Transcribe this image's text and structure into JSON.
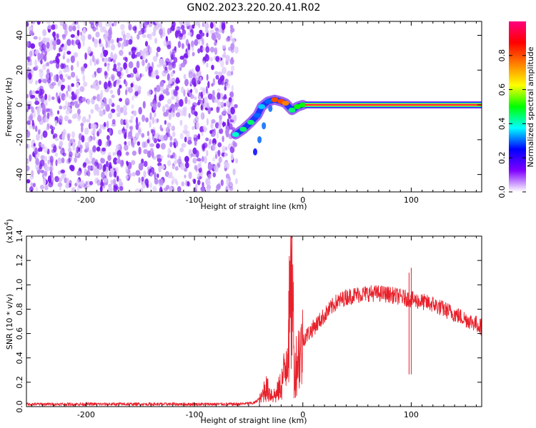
{
  "title": "GN02.2023.220.20.41.R02",
  "chart_data": [
    {
      "type": "heatmap",
      "title": "GN02.2023.220.20.41.R02",
      "xlabel": "Height of straight line (km)",
      "ylabel": "Frequency (Hz)",
      "xlim": [
        -255,
        165
      ],
      "ylim": [
        -50,
        48
      ],
      "x_ticks": [
        -200,
        -100,
        0,
        100
      ],
      "x_tick_labels": [
        "-200",
        "-100",
        "0",
        "100"
      ],
      "y_ticks": [
        -40,
        -20,
        0,
        20,
        40
      ],
      "y_tick_labels": [
        "-40",
        "-20",
        "0",
        "20",
        "40"
      ],
      "grid": false,
      "colorbar": {
        "label": "Normalized spectral amplitude",
        "range": [
          0,
          1
        ],
        "ticks": [
          0.0,
          0.2,
          0.4,
          0.6,
          0.8
        ],
        "tick_labels": [
          "0.0",
          "0.2",
          "0.4",
          "0.6",
          "0.8"
        ],
        "colormap": [
          "#ffffff",
          "#8000ff",
          "#0000ff",
          "#00ffff",
          "#00ff00",
          "#ffff00",
          "#ff8000",
          "#ff0000",
          "#ff0080"
        ]
      },
      "regions": {
        "noise_band": {
          "x_range": [
            -255,
            -61
          ],
          "y_range": [
            -50,
            48
          ],
          "amplitude": 0.1
        },
        "signal_ridge": [
          {
            "x": -62,
            "y": -17,
            "amplitude": 0.4
          },
          {
            "x": -55,
            "y": -14,
            "amplitude": 0.45
          },
          {
            "x": -48,
            "y": -10,
            "amplitude": 0.45
          },
          {
            "x": -42,
            "y": -6,
            "amplitude": 0.3
          },
          {
            "x": -38,
            "y": -1,
            "amplitude": 0.35
          },
          {
            "x": -32,
            "y": 2,
            "amplitude": 0.3
          },
          {
            "x": -26,
            "y": 3,
            "amplitude": 0.8
          },
          {
            "x": -20,
            "y": 2,
            "amplitude": 0.8
          },
          {
            "x": -16,
            "y": 1,
            "amplitude": 0.75
          },
          {
            "x": -10,
            "y": -3,
            "amplitude": 0.45
          },
          {
            "x": -5,
            "y": -1,
            "amplitude": 0.5
          },
          {
            "x": 0,
            "y": 0,
            "amplitude": 0.5
          }
        ],
        "secondary_branch": [
          {
            "x": -30,
            "y": -2,
            "amplitude": 0.2
          },
          {
            "x": -36,
            "y": -12,
            "amplitude": 0.2
          },
          {
            "x": -40,
            "y": -20,
            "amplitude": 0.2
          },
          {
            "x": -44,
            "y": -27,
            "amplitude": 0.15
          }
        ],
        "stable_line": {
          "x_range": [
            2,
            165
          ],
          "y": 0,
          "amplitude": 1.0
        }
      }
    },
    {
      "type": "line",
      "xlabel": "Height of straight line (km)",
      "ylabel": "SNR (10 * v/v)",
      "y_multiplier_label": "(x10",
      "y_multiplier_exp": "4",
      "y_multiplier_close": ")",
      "xlim": [
        -255,
        165
      ],
      "ylim": [
        0,
        1.4
      ],
      "x_ticks": [
        -200,
        -100,
        0,
        100
      ],
      "x_tick_labels": [
        "-200",
        "-100",
        "0",
        "100"
      ],
      "y_ticks": [
        0.0,
        0.2,
        0.4,
        0.6,
        0.8,
        1.0,
        1.2,
        1.4
      ],
      "y_tick_labels": [
        "0.0",
        "0.2",
        "0.4",
        "0.6",
        "0.8",
        "1.0",
        "1.2",
        "1.4"
      ],
      "grid": false,
      "series": [
        {
          "color": "#e8202a",
          "x": [
            -255,
            -200,
            -150,
            -100,
            -60,
            -45,
            -38,
            -35,
            -30,
            -25,
            -20,
            -16,
            -13,
            -11,
            -10,
            -8,
            -5,
            0,
            10,
            20,
            30,
            40,
            50,
            60,
            70,
            80,
            90,
            100,
            110,
            120,
            130,
            140,
            150,
            160,
            165
          ],
          "y": [
            0.02,
            0.02,
            0.02,
            0.02,
            0.02,
            0.03,
            0.08,
            0.18,
            0.12,
            0.1,
            0.2,
            0.35,
            0.75,
            0.9,
            1.4,
            0.3,
            0.45,
            0.55,
            0.65,
            0.75,
            0.85,
            0.9,
            0.92,
            0.93,
            0.93,
            0.92,
            0.9,
            0.88,
            0.86,
            0.84,
            0.8,
            0.76,
            0.72,
            0.68,
            0.65
          ]
        }
      ],
      "spikes": [
        {
          "x": -10,
          "y": 1.4
        },
        {
          "x": -13,
          "y": 0.95
        },
        {
          "x": 98,
          "y": 1.1
        },
        {
          "x": 100,
          "y": 1.14
        }
      ]
    }
  ]
}
